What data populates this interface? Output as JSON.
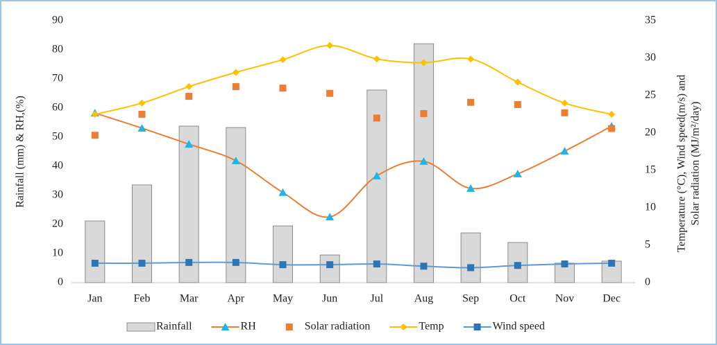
{
  "chart_data": {
    "type": "combo",
    "y_label": "Rainfall (mm) & RH,(%)",
    "y2_label": [
      "Temperature (°C), Wind speed(m/s) and",
      "Solar radiation (MJ/m²/day)"
    ],
    "categories": [
      "Jan",
      "Feb",
      "Mar",
      "Apr",
      "May",
      "Jun",
      "Jul",
      "Aug",
      "Sep",
      "Oct",
      "Nov",
      "Dec"
    ],
    "ylim": [
      0,
      90
    ],
    "yticks": [
      0,
      10,
      20,
      30,
      40,
      50,
      60,
      70,
      80,
      90
    ],
    "y2lim": [
      0,
      35
    ],
    "y2ticks": [
      0,
      5,
      10,
      15,
      20,
      25,
      30,
      35
    ],
    "legend": "bottom",
    "series": [
      {
        "name": "Rainfall",
        "type": "bar",
        "color": "#d9d9d9",
        "edge": "#8c8c8c",
        "values": [
          21.2,
          33.6,
          53.8,
          53.3,
          19.5,
          9.5,
          66.2,
          82.1,
          17.1,
          13.8,
          6.7,
          7.4
        ]
      },
      {
        "name": "RH",
        "type": "line",
        "color": "#ed7d31",
        "marker": "triangle",
        "marker_color": "#1fb5e8",
        "values": [
          58.3,
          53.1,
          47.6,
          41.9,
          31.0,
          22.6,
          36.7,
          41.7,
          32.4,
          37.4,
          45.2,
          53.8
        ]
      },
      {
        "name": "Solar radiation",
        "type": "scatter",
        "axis": "y2",
        "marker": "square",
        "marker_color": "#ed7d31",
        "values": [
          19.7,
          22.5,
          24.9,
          26.2,
          26.0,
          25.3,
          22.0,
          22.6,
          24.1,
          23.8,
          22.7,
          20.6
        ]
      },
      {
        "name": "Temp",
        "type": "line",
        "axis": "y2",
        "color": "#ffc000",
        "marker": "diamond",
        "marker_color": "#ffc000",
        "values": [
          22.5,
          24.0,
          26.2,
          28.1,
          29.8,
          31.7,
          29.9,
          29.4,
          29.9,
          26.8,
          24.0,
          22.5
        ]
      },
      {
        "name": "Wind speed",
        "type": "line",
        "axis": "y2",
        "color": "#5b9bd5",
        "marker": "square",
        "marker_color": "#2e75b6",
        "values": [
          2.6,
          2.6,
          2.7,
          2.7,
          2.4,
          2.4,
          2.5,
          2.2,
          2.0,
          2.3,
          2.5,
          2.6
        ]
      }
    ]
  }
}
